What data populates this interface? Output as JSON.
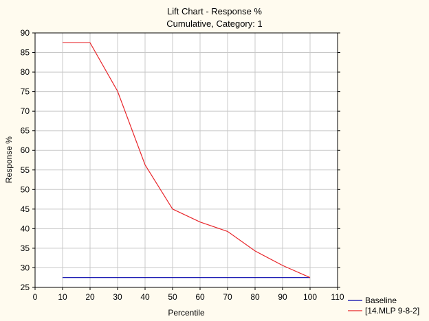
{
  "chart_data": {
    "type": "line",
    "title": "Lift Chart - Response %",
    "subtitle": "Cumulative, Category: 1",
    "xlabel": "Percentile",
    "ylabel": "Response %",
    "xlim": [
      0,
      110
    ],
    "ylim": [
      25,
      90
    ],
    "xticks": [
      0,
      10,
      20,
      30,
      40,
      50,
      60,
      70,
      80,
      90,
      100,
      110
    ],
    "yticks": [
      25,
      30,
      35,
      40,
      45,
      50,
      55,
      60,
      65,
      70,
      75,
      80,
      85,
      90
    ],
    "grid": true,
    "legend_position": "bottom-right",
    "series": [
      {
        "name": "Baseline",
        "color": "#0000aa",
        "x": [
          10,
          20,
          30,
          40,
          50,
          60,
          70,
          80,
          90,
          100
        ],
        "values": [
          27.5,
          27.5,
          27.5,
          27.5,
          27.5,
          27.5,
          27.5,
          27.5,
          27.5,
          27.5
        ]
      },
      {
        "name": "[14.MLP 9-8-2]",
        "color": "#e8262b",
        "x": [
          10,
          20,
          30,
          40,
          50,
          60,
          70,
          80,
          90,
          100
        ],
        "values": [
          87.5,
          87.5,
          75.1,
          56.3,
          45.0,
          41.7,
          39.3,
          34.3,
          30.6,
          27.5
        ]
      }
    ]
  }
}
